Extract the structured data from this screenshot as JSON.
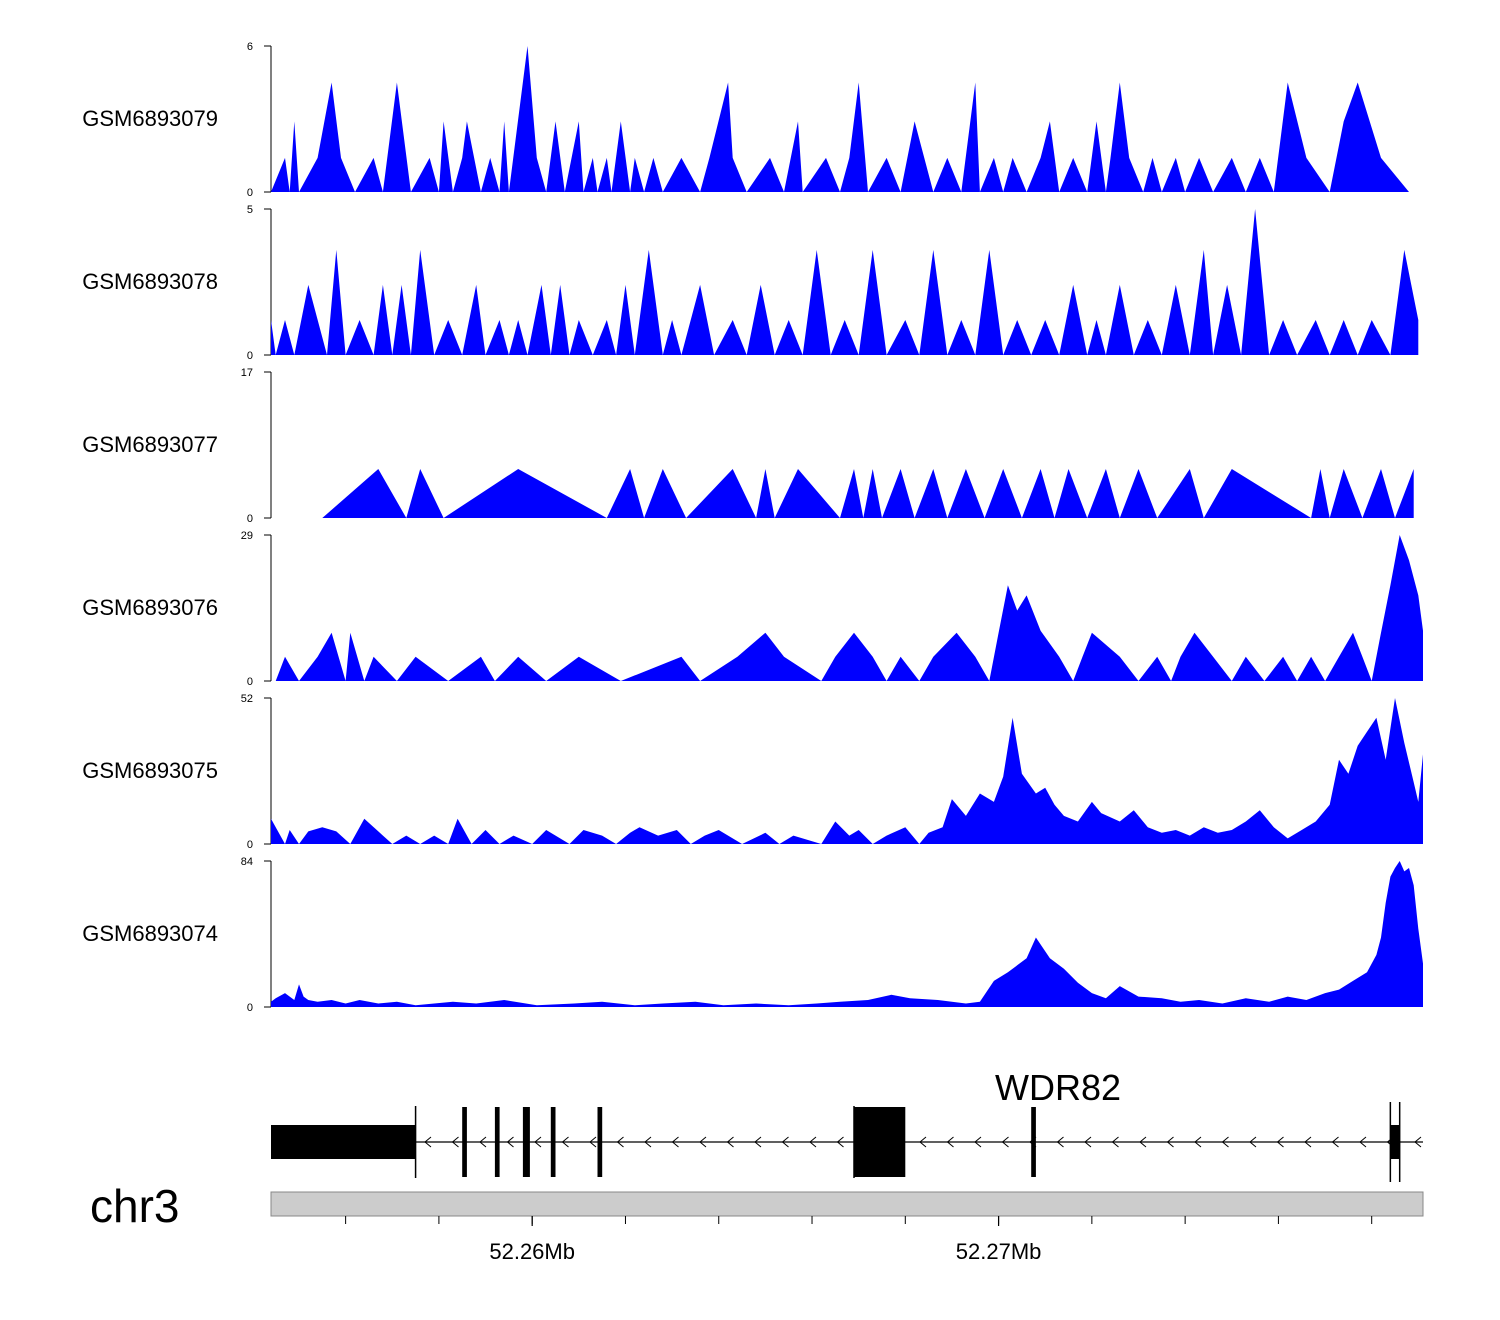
{
  "chart_data": {
    "type": "area",
    "title": "",
    "xlabel": "",
    "chromosome": "chr3",
    "xlim": [
      52254400,
      52279100
    ],
    "x_ticks": [
      {
        "value": 52260000,
        "label": "52.26Mb"
      },
      {
        "value": 52270000,
        "label": "52.27Mb"
      }
    ],
    "x_minor_ticks": [
      52256000,
      52258000,
      52260000,
      52262000,
      52264000,
      52266000,
      52268000,
      52270000,
      52272000,
      52274000,
      52276000,
      52278000
    ],
    "fill_color": "#0000ff",
    "tracks": [
      {
        "name": "GSM6893079",
        "ylim": [
          0,
          6
        ],
        "x": [
          52254400,
          52254700,
          52254800,
          52254900,
          52255000,
          52255400,
          52255700,
          52255900,
          52256200,
          52256600,
          52256800,
          52257100,
          52257400,
          52257800,
          52258000,
          52258100,
          52258300,
          52258500,
          52258600,
          52258900,
          52259100,
          52259300,
          52259400,
          52259500,
          52259900,
          52260100,
          52260300,
          52260500,
          52260700,
          52261000,
          52261100,
          52261300,
          52261400,
          52261600,
          52261700,
          52261900,
          52262100,
          52262200,
          52262400,
          52262600,
          52262800,
          52263200,
          52263600,
          52263800,
          52264200,
          52264300,
          52264600,
          52265100,
          52265400,
          52265700,
          52265800,
          52266300,
          52266600,
          52266800,
          52267000,
          52267200,
          52267600,
          52267900,
          52268200,
          52268600,
          52268900,
          52269200,
          52269500,
          52269600,
          52269900,
          52270100,
          52270300,
          52270600,
          52270900,
          52271100,
          52271300,
          52271600,
          52271900,
          52272100,
          52272300,
          52272400,
          52272600,
          52272800,
          52273100,
          52273300,
          52273500,
          52273800,
          52274000,
          52274300,
          52274600,
          52275000,
          52275300,
          52275600,
          52275900,
          52276200,
          52276600,
          52277100,
          52277400,
          52277700,
          52278200,
          52278800
        ],
        "values": [
          0,
          1.4,
          0,
          2.9,
          0,
          1.4,
          4.5,
          1.4,
          0,
          1.4,
          0,
          4.5,
          0,
          1.4,
          0,
          2.9,
          0,
          1.4,
          2.9,
          0,
          1.4,
          0,
          2.9,
          0,
          6,
          1.4,
          0,
          2.9,
          0,
          2.9,
          0,
          1.4,
          0,
          1.4,
          0,
          2.9,
          0,
          1.4,
          0,
          1.4,
          0,
          1.4,
          0,
          1.4,
          4.5,
          1.4,
          0,
          1.4,
          0,
          2.9,
          0,
          1.4,
          0,
          1.4,
          4.5,
          0,
          1.4,
          0,
          2.9,
          0,
          1.4,
          0,
          4.5,
          0,
          1.4,
          0,
          1.4,
          0,
          1.4,
          2.9,
          0,
          1.4,
          0,
          2.9,
          0,
          1.4,
          4.5,
          1.4,
          0,
          1.4,
          0,
          1.4,
          0,
          1.4,
          0,
          1.4,
          0,
          1.4,
          0,
          4.5,
          1.4,
          0,
          2.9,
          4.5,
          1.4,
          0
        ]
      },
      {
        "name": "GSM6893078",
        "ylim": [
          0,
          5
        ],
        "x": [
          52254400,
          52254500,
          52254700,
          52254900,
          52255200,
          52255600,
          52255800,
          52256000,
          52256300,
          52256600,
          52256800,
          52257000,
          52257200,
          52257400,
          52257600,
          52257900,
          52258200,
          52258500,
          52258800,
          52259000,
          52259300,
          52259500,
          52259700,
          52259900,
          52260200,
          52260400,
          52260600,
          52260800,
          52261000,
          52261300,
          52261600,
          52261800,
          52262000,
          52262200,
          52262500,
          52262800,
          52263000,
          52263200,
          52263600,
          52263900,
          52264300,
          52264600,
          52264900,
          52265200,
          52265500,
          52265800,
          52266100,
          52266400,
          52266700,
          52267000,
          52267300,
          52267600,
          52268000,
          52268300,
          52268600,
          52268900,
          52269200,
          52269500,
          52269800,
          52270100,
          52270400,
          52270700,
          52271000,
          52271300,
          52271600,
          52271900,
          52272100,
          52272300,
          52272600,
          52272900,
          52273200,
          52273500,
          52273800,
          52274100,
          52274400,
          52274600,
          52274900,
          52275200,
          52275500,
          52275800,
          52276100,
          52276400,
          52276800,
          52277100,
          52277400,
          52277700,
          52278000,
          52278400,
          52278700,
          52279000
        ],
        "values": [
          1.2,
          0,
          1.2,
          0,
          2.4,
          0,
          3.6,
          0,
          1.2,
          0,
          2.4,
          0,
          2.4,
          0,
          3.6,
          0,
          1.2,
          0,
          2.4,
          0,
          1.2,
          0,
          1.2,
          0,
          2.4,
          0,
          2.4,
          0,
          1.2,
          0,
          1.2,
          0,
          2.4,
          0,
          3.6,
          0,
          1.2,
          0,
          2.4,
          0,
          1.2,
          0,
          2.4,
          0,
          1.2,
          0,
          3.6,
          0,
          1.2,
          0,
          3.6,
          0,
          1.2,
          0,
          3.6,
          0,
          1.2,
          0,
          3.6,
          0,
          1.2,
          0,
          1.2,
          0,
          2.4,
          0,
          1.2,
          0,
          2.4,
          0,
          1.2,
          0,
          2.4,
          0,
          3.6,
          0,
          2.4,
          0,
          5,
          0,
          1.2,
          0,
          1.2,
          0,
          1.2,
          0,
          1.2,
          0,
          3.6,
          1.2
        ]
      },
      {
        "name": "GSM6893077",
        "ylim": [
          0,
          17
        ],
        "x": [
          52255500,
          52256700,
          52257300,
          52257600,
          52258100,
          52259700,
          52261600,
          52262100,
          52262400,
          52262800,
          52263300,
          52264300,
          52264800,
          52265000,
          52265200,
          52265700,
          52266600,
          52266900,
          52267100,
          52267300,
          52267500,
          52267900,
          52268200,
          52268600,
          52268900,
          52269300,
          52269700,
          52270100,
          52270500,
          52270900,
          52271200,
          52271500,
          52271900,
          52272300,
          52272600,
          52273000,
          52273400,
          52274100,
          52274400,
          52275000,
          52276700,
          52276900,
          52277100,
          52277400,
          52277800,
          52278200,
          52278500,
          52278900
        ],
        "values": [
          0,
          5.7,
          0,
          5.7,
          0,
          5.7,
          0,
          5.7,
          0,
          5.7,
          0,
          5.7,
          0,
          5.7,
          0,
          5.7,
          0,
          5.7,
          0,
          5.7,
          0,
          5.7,
          0,
          5.7,
          0,
          5.7,
          0,
          5.7,
          0,
          5.7,
          0,
          5.7,
          0,
          5.7,
          0,
          5.7,
          0,
          5.7,
          0,
          5.7,
          0,
          5.7,
          0,
          5.7,
          0,
          5.7,
          0,
          5.7
        ]
      },
      {
        "name": "GSM6893076",
        "ylim": [
          0,
          29
        ],
        "x": [
          52254500,
          52254700,
          52255000,
          52255400,
          52255700,
          52256000,
          52256100,
          52256400,
          52256600,
          52257100,
          52257500,
          52258200,
          52258900,
          52259200,
          52259700,
          52260300,
          52261000,
          52261900,
          52263200,
          52263600,
          52264400,
          52265000,
          52265400,
          52266200,
          52266500,
          52266900,
          52267300,
          52267600,
          52267900,
          52268300,
          52268600,
          52269100,
          52269500,
          52269800,
          52270000,
          52270200,
          52270400,
          52270600,
          52270900,
          52271300,
          52271600,
          52271800,
          52272000,
          52272600,
          52273000,
          52273400,
          52273700,
          52273900,
          52274200,
          52274600,
          52275000,
          52275300,
          52275700,
          52276100,
          52276400,
          52276700,
          52277000,
          52277300,
          52277600,
          52277800,
          52278000,
          52278200,
          52278400,
          52278600,
          52278800,
          52279000,
          52279100
        ],
        "values": [
          0,
          4.8,
          0,
          4.8,
          9.6,
          0,
          9.6,
          0,
          4.8,
          0,
          4.8,
          0,
          4.8,
          0,
          4.8,
          0,
          4.8,
          0,
          4.8,
          0,
          4.8,
          9.6,
          4.8,
          0,
          4.8,
          9.6,
          4.8,
          0,
          4.8,
          0,
          4.8,
          9.6,
          4.8,
          0,
          9.6,
          19,
          14,
          17,
          10,
          4.8,
          0,
          4.8,
          9.6,
          4.8,
          0,
          4.8,
          0,
          4.8,
          9.6,
          4.8,
          0,
          4.8,
          0,
          4.8,
          0,
          4.8,
          0,
          4.8,
          9.6,
          4.8,
          0,
          9.6,
          19,
          29,
          24,
          17,
          10
        ]
      },
      {
        "name": "GSM6893075",
        "ylim": [
          0,
          52
        ],
        "x": [
          52254400,
          52254700,
          52254800,
          52255000,
          52255200,
          52255500,
          52255800,
          52256100,
          52256400,
          52256700,
          52257000,
          52257300,
          52257600,
          52257900,
          52258200,
          52258400,
          52258700,
          52259000,
          52259300,
          52259600,
          52260000,
          52260300,
          52260800,
          52261100,
          52261500,
          52261800,
          52262100,
          52262300,
          52262700,
          52263100,
          52263400,
          52263700,
          52264000,
          52264500,
          52265000,
          52265300,
          52265600,
          52266200,
          52266500,
          52266800,
          52267000,
          52267300,
          52267600,
          52268000,
          52268300,
          52268500,
          52268800,
          52269000,
          52269300,
          52269600,
          52269900,
          52270100,
          52270300,
          52270500,
          52270800,
          52271000,
          52271200,
          52271400,
          52271700,
          52272000,
          52272200,
          52272600,
          52272900,
          52273200,
          52273500,
          52273800,
          52274100,
          52274400,
          52274700,
          52275000,
          52275300,
          52275600,
          52275900,
          52276200,
          52276500,
          52276800,
          52277100,
          52277300,
          52277500,
          52277700,
          52277900,
          52278100,
          52278300,
          52278500,
          52278700,
          52278900,
          52279000,
          52279100
        ],
        "values": [
          9,
          0,
          5,
          0,
          4.5,
          6,
          4.5,
          0,
          9,
          4.5,
          0,
          3,
          0,
          3,
          0,
          9,
          0,
          5,
          0,
          3,
          0,
          5,
          0,
          5,
          3,
          0,
          4,
          6,
          3,
          5,
          0,
          3,
          5,
          0,
          4,
          0,
          3,
          0,
          8,
          3,
          5,
          0,
          3,
          6,
          0,
          4,
          6,
          16,
          10,
          18,
          15,
          24,
          45,
          25,
          18,
          20,
          14,
          10,
          8,
          15,
          11,
          8,
          12,
          6,
          4,
          5,
          3,
          6,
          4,
          5,
          8,
          12,
          6,
          2,
          5,
          8,
          14,
          30,
          25,
          35,
          40,
          45,
          30,
          52,
          36,
          22,
          15,
          32
        ]
      },
      {
        "name": "GSM6893074",
        "ylim": [
          0,
          84
        ],
        "x": [
          52254400,
          52254500,
          52254700,
          52254900,
          52255000,
          52255100,
          52255200,
          52255400,
          52255700,
          52256000,
          52256300,
          52256700,
          52257100,
          52257500,
          52257900,
          52258300,
          52258800,
          52259400,
          52260100,
          52260900,
          52261500,
          52262200,
          52262800,
          52263500,
          52264100,
          52264800,
          52265500,
          52266100,
          52266600,
          52267200,
          52267700,
          52268100,
          52268700,
          52269300,
          52269600,
          52269900,
          52270200,
          52270400,
          52270600,
          52270800,
          52271100,
          52271400,
          52271700,
          52272000,
          52272300,
          52272600,
          52273000,
          52273500,
          52273900,
          52274300,
          52274800,
          52275300,
          52275800,
          52276200,
          52276600,
          52277000,
          52277300,
          52277600,
          52277900,
          52278100,
          52278200,
          52278300,
          52278400,
          52278500,
          52278600,
          52278700,
          52278800,
          52278900,
          52279000,
          52279100
        ],
        "values": [
          3,
          5,
          8,
          4,
          13,
          6,
          4,
          3,
          4,
          2,
          4,
          2,
          3,
          1,
          2,
          3,
          2,
          4,
          1,
          2,
          3,
          1,
          2,
          3,
          1,
          2,
          1,
          2,
          3,
          4,
          7,
          5,
          4,
          2,
          3,
          15,
          20,
          24,
          28,
          40,
          28,
          22,
          14,
          8,
          5,
          12,
          6,
          5,
          3,
          4,
          2,
          5,
          3,
          6,
          4,
          8,
          10,
          15,
          20,
          30,
          40,
          60,
          75,
          80,
          84,
          78,
          80,
          70,
          45,
          25
        ]
      }
    ]
  },
  "gene_track": {
    "gene_name": "WDR82",
    "strand": "-",
    "line_color": "#000000",
    "exons": [
      [
        52254400,
        52257500
      ],
      [
        52258500,
        52258600
      ],
      [
        52259200,
        52259300
      ],
      [
        52259800,
        52259950
      ],
      [
        52260400,
        52260500
      ],
      [
        52261400,
        52261500
      ],
      [
        52266900,
        52268000
      ],
      [
        52270700,
        52270800
      ],
      [
        52278400,
        52278600
      ]
    ]
  }
}
